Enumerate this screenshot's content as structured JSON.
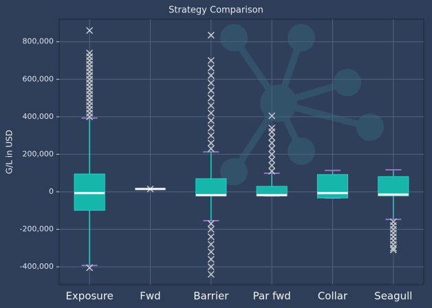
{
  "chart_data": {
    "type": "box",
    "title": "Strategy Comparison",
    "y_label": "G/L in USD",
    "categories": [
      "Exposure",
      "Fwd",
      "Barrier",
      "Par fwd",
      "Collar",
      "Seagull"
    ],
    "stats": [
      {
        "whislo": -393000,
        "q1": -99000,
        "med": -7000,
        "q3": 95000,
        "whishi": 393000,
        "fliers": [
          400000,
          420000,
          440000,
          460000,
          480000,
          500000,
          520000,
          540000,
          560000,
          580000,
          600000,
          620000,
          640000,
          660000,
          680000,
          700000,
          720000,
          740000,
          860000,
          -405000
        ]
      },
      {
        "whislo": 15000,
        "q1": 15000,
        "med": 15000,
        "q3": 15000,
        "whishi": 15000,
        "fliers": [
          15000
        ]
      },
      {
        "whislo": -154000,
        "q1": -22000,
        "med": -18000,
        "q3": 70000,
        "whishi": 213000,
        "fliers": [
          230000,
          260000,
          300000,
          340000,
          380000,
          420000,
          460000,
          500000,
          540000,
          580000,
          620000,
          660000,
          700000,
          835000,
          -170000,
          -200000,
          -240000,
          -280000,
          -320000,
          -360000,
          -400000,
          -440000
        ]
      },
      {
        "whislo": -22000,
        "q1": -22000,
        "med": -18000,
        "q3": 29000,
        "whishi": 99000,
        "fliers": [
          110000,
          140000,
          170000,
          200000,
          230000,
          260000,
          290000,
          320000,
          340000,
          405000
        ]
      },
      {
        "whislo": -33000,
        "q1": -33000,
        "med": -7000,
        "q3": 92000,
        "whishi": 114000,
        "fliers": []
      },
      {
        "whislo": -147000,
        "q1": -22000,
        "med": -15000,
        "q3": 81000,
        "whishi": 117000,
        "fliers": [
          -160000,
          -180000,
          -200000,
          -220000,
          -240000,
          -260000,
          -280000,
          -300000,
          -310000
        ]
      }
    ],
    "box_color": "#17b6ab",
    "whisker_color": "#1fd6c8",
    "cap_color": "#8f74c8",
    "median_color": "#ffffff",
    "flier_color": "#c9cacf",
    "ylim": [
      -495000,
      920000
    ],
    "yticks": [
      {
        "value": -400000,
        "label": "-400,000"
      },
      {
        "value": -200000,
        "label": "-200,000"
      },
      0,
      {
        "value": 200000,
        "label": "200,000"
      },
      {
        "value": 400000,
        "label": "400,000"
      },
      {
        "value": 600000,
        "label": "600,000"
      },
      {
        "value": 800000,
        "label": "800,000"
      }
    ],
    "grid": true
  }
}
